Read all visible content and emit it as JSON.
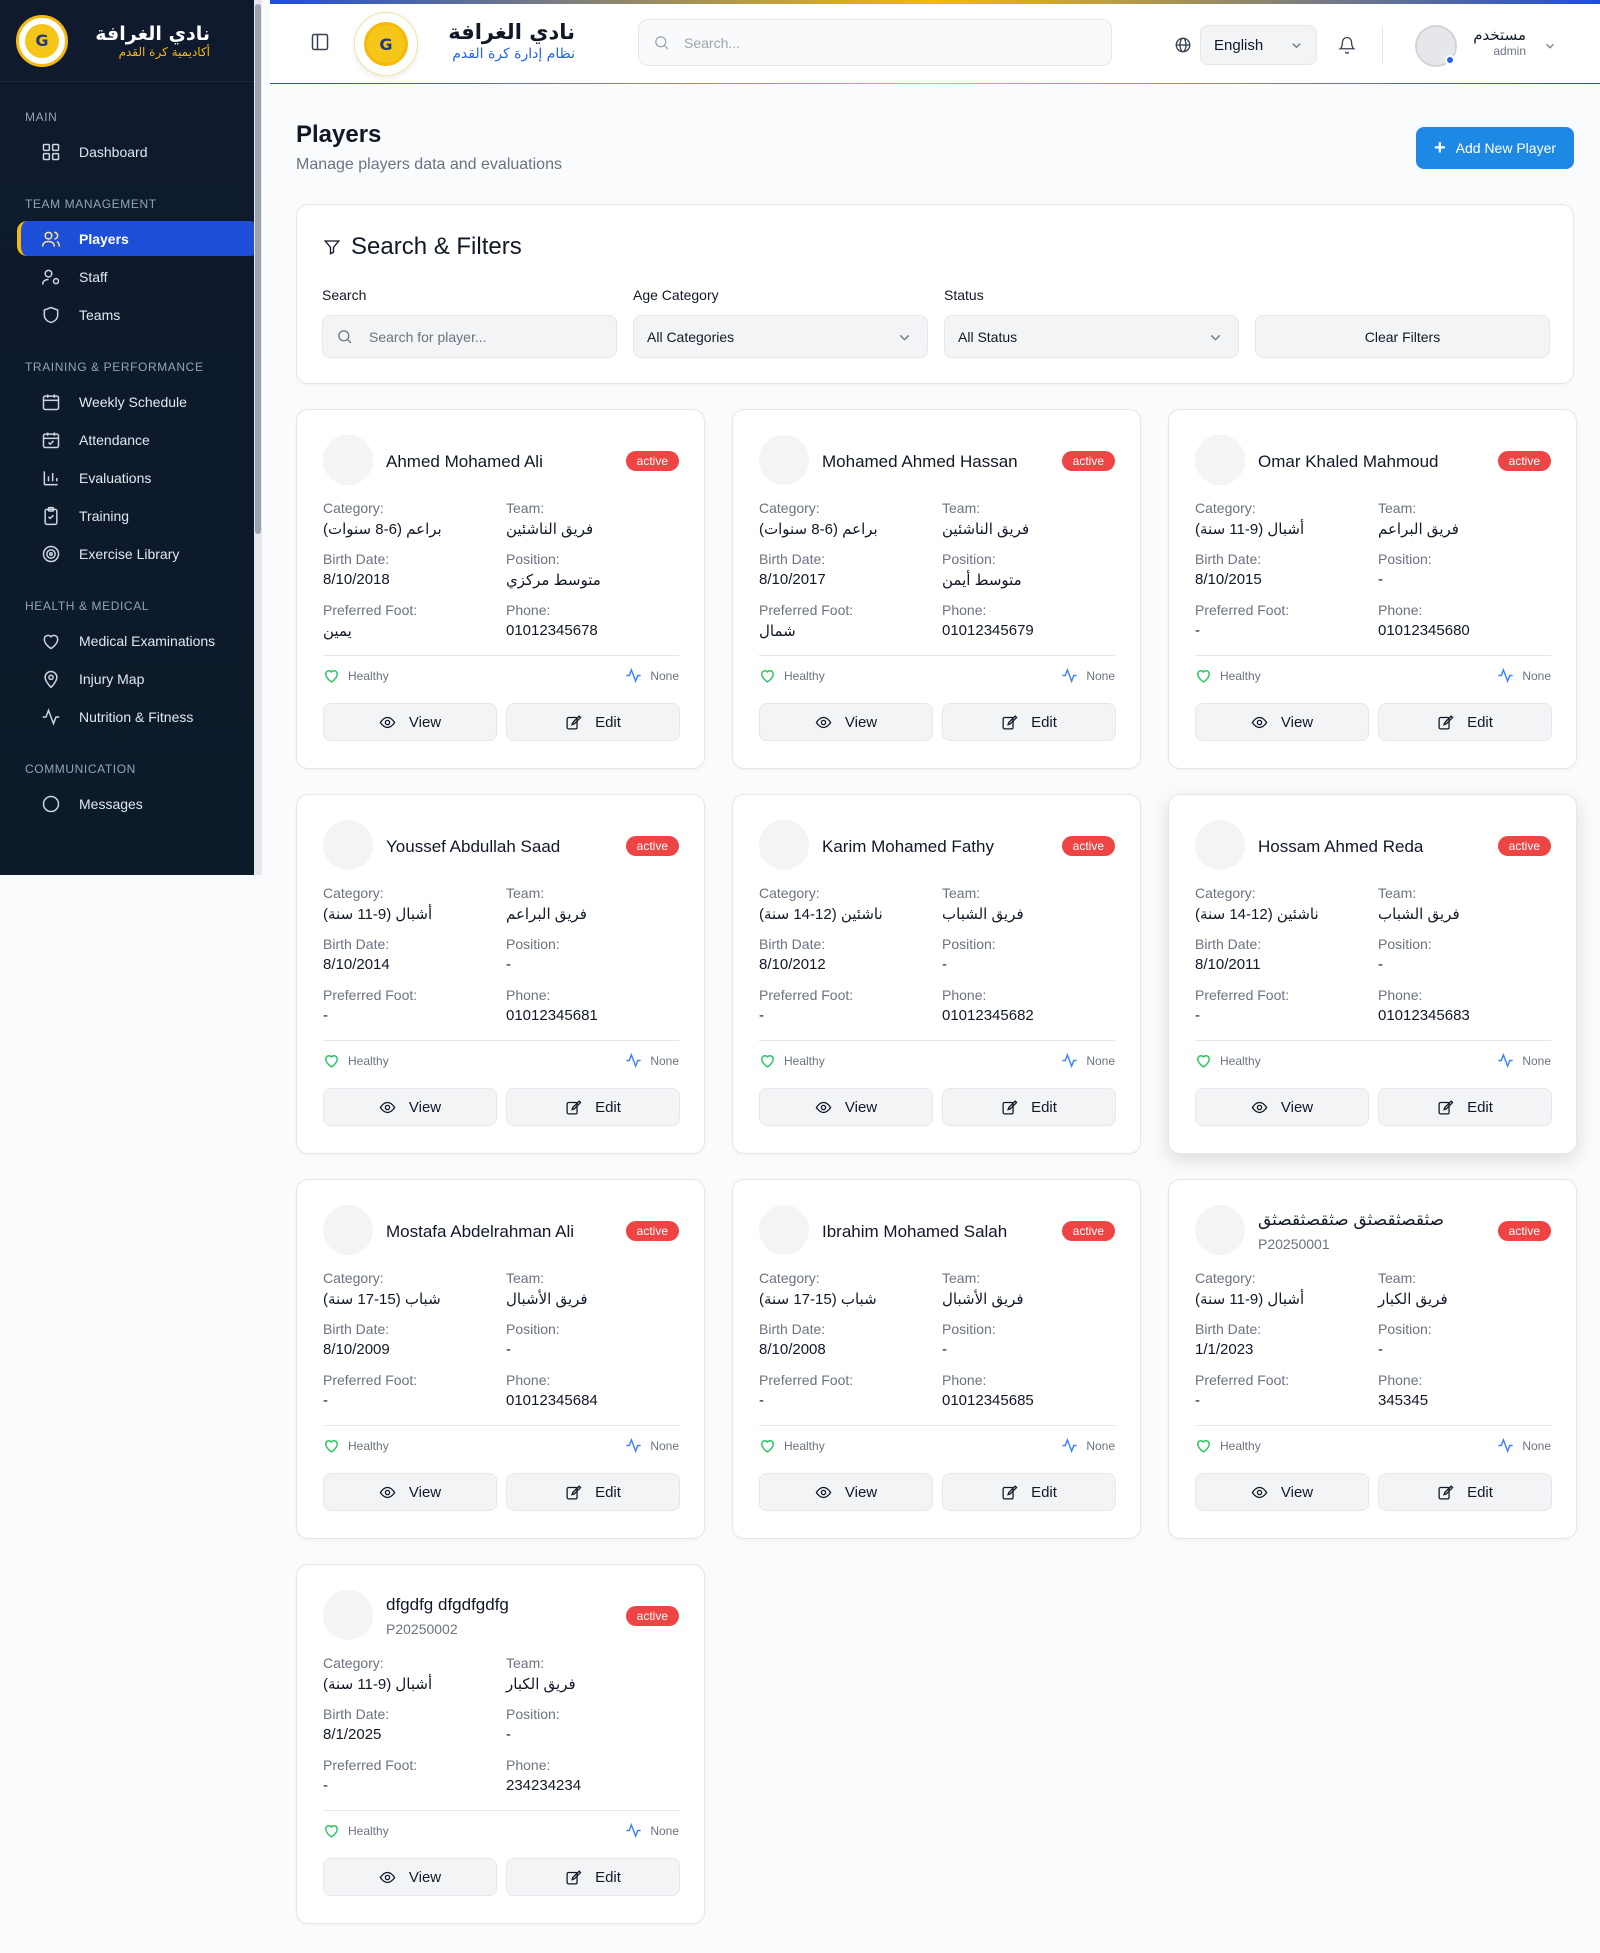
{
  "sidebar": {
    "brand_name": "نادي الغرافة",
    "brand_sub": "أكاديمية كرة القدم",
    "sections": [
      {
        "title": "MAIN",
        "items": [
          {
            "label": "Dashboard",
            "icon": "grid-icon"
          }
        ]
      },
      {
        "title": "TEAM MANAGEMENT",
        "items": [
          {
            "label": "Players",
            "icon": "users-icon",
            "active": true
          },
          {
            "label": "Staff",
            "icon": "user-cog-icon"
          },
          {
            "label": "Teams",
            "icon": "shield-icon"
          }
        ]
      },
      {
        "title": "TRAINING & PERFORMANCE",
        "items": [
          {
            "label": "Weekly Schedule",
            "icon": "calendar-icon"
          },
          {
            "label": "Attendance",
            "icon": "calendar-check-icon"
          },
          {
            "label": "Evaluations",
            "icon": "bar-chart-icon"
          },
          {
            "label": "Training",
            "icon": "clipboard-icon"
          },
          {
            "label": "Exercise Library",
            "icon": "target-icon"
          }
        ]
      },
      {
        "title": "HEALTH & MEDICAL",
        "items": [
          {
            "label": "Medical Examinations",
            "icon": "heart-icon"
          },
          {
            "label": "Injury Map",
            "icon": "map-pin-icon"
          },
          {
            "label": "Nutrition & Fitness",
            "icon": "activity-icon"
          }
        ]
      },
      {
        "title": "COMMUNICATION",
        "items": [
          {
            "label": "Messages",
            "icon": "message-icon"
          }
        ]
      }
    ]
  },
  "topbar": {
    "club_name": "نادي الغرافة",
    "club_sub": "نظام إدارة كرة القدم",
    "search_placeholder": "Search...",
    "language": "English",
    "user_name": "مستخدم",
    "user_role": "admin"
  },
  "page": {
    "title": "Players",
    "subtitle": "Manage players data and evaluations",
    "add_button": "Add New Player"
  },
  "filters": {
    "title": "Search & Filters",
    "search_label": "Search",
    "search_placeholder": "Search for player...",
    "age_label": "Age Category",
    "age_value": "All Categories",
    "status_label": "Status",
    "status_value": "All Status",
    "clear_label": "Clear Filters"
  },
  "labels": {
    "category": "Category:",
    "team": "Team:",
    "birth": "Birth Date:",
    "position": "Position:",
    "foot": "Preferred Foot:",
    "phone": "Phone:",
    "view": "View",
    "edit": "Edit"
  },
  "players": [
    {
      "name": "Ahmed Mohamed Ali",
      "code": "",
      "status": "active",
      "category": "براعم (6-8 سنوات)",
      "team": "فريق الناشئين",
      "birth": "8/10/2018",
      "position": "متوسط مركزي",
      "foot": "يمين",
      "phone": "01012345678",
      "health": "Healthy",
      "injury": "None"
    },
    {
      "name": "Mohamed Ahmed Hassan",
      "code": "",
      "status": "active",
      "category": "براعم (6-8 سنوات)",
      "team": "فريق الناشئين",
      "birth": "8/10/2017",
      "position": "متوسط أيمن",
      "foot": "شمال",
      "phone": "01012345679",
      "health": "Healthy",
      "injury": "None"
    },
    {
      "name": "Omar Khaled Mahmoud",
      "code": "",
      "status": "active",
      "category": "أشبال (9-11 سنة)",
      "team": "فريق البراعم",
      "birth": "8/10/2015",
      "position": "-",
      "foot": "-",
      "phone": "01012345680",
      "health": "Healthy",
      "injury": "None"
    },
    {
      "name": "Youssef Abdullah Saad",
      "code": "",
      "status": "active",
      "category": "أشبال (9-11 سنة)",
      "team": "فريق البراعم",
      "birth": "8/10/2014",
      "position": "-",
      "foot": "-",
      "phone": "01012345681",
      "health": "Healthy",
      "injury": "None"
    },
    {
      "name": "Karim Mohamed Fathy",
      "code": "",
      "status": "active",
      "category": "ناشئين (12-14 سنة)",
      "team": "فريق الشباب",
      "birth": "8/10/2012",
      "position": "-",
      "foot": "-",
      "phone": "01012345682",
      "health": "Healthy",
      "injury": "None"
    },
    {
      "name": "Hossam Ahmed Reda",
      "code": "",
      "status": "active",
      "category": "ناشئين (12-14 سنة)",
      "team": "فريق الشباب",
      "birth": "8/10/2011",
      "position": "-",
      "foot": "-",
      "phone": "01012345683",
      "health": "Healthy",
      "injury": "None"
    },
    {
      "name": "Mostafa Abdelrahman Ali",
      "code": "",
      "status": "active",
      "category": "شباب (15-17 سنة)",
      "team": "فريق الأشبال",
      "birth": "8/10/2009",
      "position": "-",
      "foot": "-",
      "phone": "01012345684",
      "health": "Healthy",
      "injury": "None"
    },
    {
      "name": "Ibrahim Mohamed Salah",
      "code": "",
      "status": "active",
      "category": "شباب (15-17 سنة)",
      "team": "فريق الأشبال",
      "birth": "8/10/2008",
      "position": "-",
      "foot": "-",
      "phone": "01012345685",
      "health": "Healthy",
      "injury": "None"
    },
    {
      "name": "صثقصثقصثق صثقصثقصثق",
      "code": "P20250001",
      "status": "active",
      "category": "أشبال (9-11 سنة)",
      "team": "فريق الكبار",
      "birth": "1/1/2023",
      "position": "-",
      "foot": "-",
      "phone": "345345",
      "health": "Healthy",
      "injury": "None"
    },
    {
      "name": "dfgdfg dfgdfgdfg",
      "code": "P20250002",
      "status": "active",
      "category": "أشبال (9-11 سنة)",
      "team": "فريق الكبار",
      "birth": "8/1/2025",
      "position": "-",
      "foot": "-",
      "phone": "234234234",
      "health": "Healthy",
      "injury": "None"
    }
  ]
}
